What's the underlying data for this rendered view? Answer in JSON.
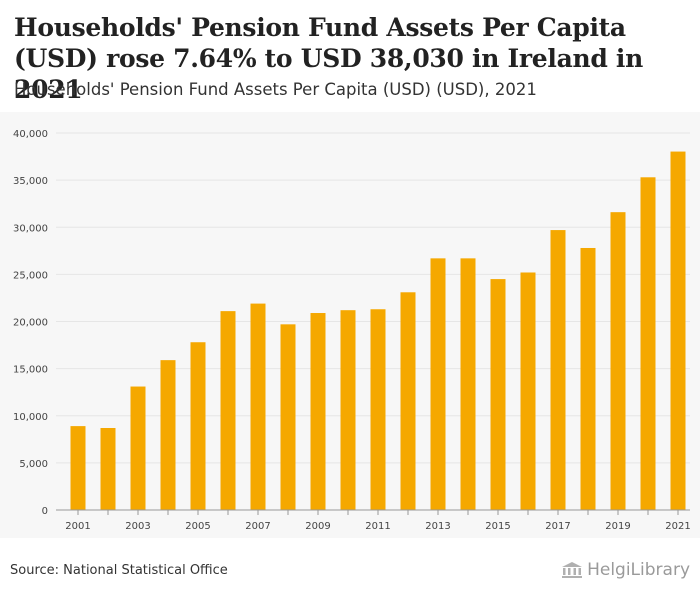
{
  "header": {
    "title": "Households' Pension Fund Assets Per Capita (USD) rose 7.64% to USD 38,030 in Ireland in 2021",
    "subtitle": "Households' Pension Fund Assets Per Capita (USD) (USD), 2021"
  },
  "footer": {
    "source": "Source: National Statistical Office",
    "logo_text": "HelgiLibrary"
  },
  "colors": {
    "bar": "#f5a800",
    "grid": "#e6e6e6",
    "axis_text": "#444444"
  },
  "chart_data": {
    "type": "bar",
    "title": "Households' Pension Fund Assets Per Capita (USD)",
    "xlabel": "",
    "ylabel": "",
    "ylim": [
      0,
      40000
    ],
    "yticks": [
      0,
      5000,
      10000,
      15000,
      20000,
      25000,
      30000,
      35000,
      40000
    ],
    "ytick_labels": [
      "0",
      "5,000",
      "10,000",
      "15,000",
      "20,000",
      "25,000",
      "30,000",
      "35,000",
      "40,000"
    ],
    "categories": [
      "2001",
      "2002",
      "2003",
      "2004",
      "2005",
      "2006",
      "2007",
      "2008",
      "2009",
      "2010",
      "2011",
      "2012",
      "2013",
      "2014",
      "2015",
      "2016",
      "2017",
      "2018",
      "2019",
      "2020",
      "2021"
    ],
    "xtick_labels": [
      "2001",
      "2003",
      "2005",
      "2007",
      "2009",
      "2011",
      "2013",
      "2015",
      "2017",
      "2019",
      "2021"
    ],
    "values": [
      8900,
      8700,
      13100,
      15900,
      17800,
      21100,
      21900,
      19700,
      20900,
      21200,
      21300,
      23100,
      26700,
      26700,
      24500,
      25200,
      29700,
      27800,
      31600,
      35300,
      38030
    ]
  }
}
